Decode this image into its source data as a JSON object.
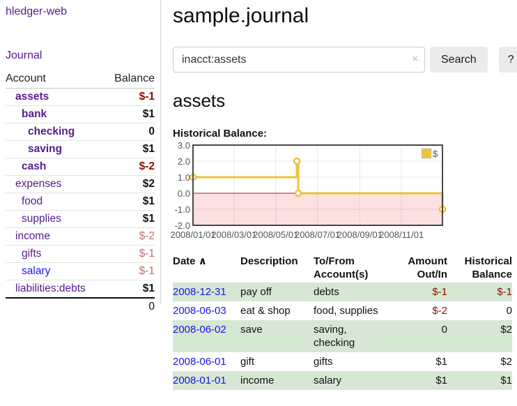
{
  "app": {
    "title": "hledger-web"
  },
  "sidebar": {
    "journal_link": "Journal",
    "accounts_header": {
      "account": "Account",
      "balance": "Balance"
    },
    "accounts": [
      {
        "name": "assets",
        "balance": "$-1"
      },
      {
        "name": "bank",
        "balance": "$1"
      },
      {
        "name": "checking",
        "balance": "0"
      },
      {
        "name": "saving",
        "balance": "$1"
      },
      {
        "name": "cash",
        "balance": "$-2"
      },
      {
        "name": "expenses",
        "balance": "$2"
      },
      {
        "name": "food",
        "balance": "$1"
      },
      {
        "name": "supplies",
        "balance": "$1"
      },
      {
        "name": "income",
        "balance": "$-2"
      },
      {
        "name": "gifts",
        "balance": "$-1"
      },
      {
        "name": "salary",
        "balance": "$-1"
      },
      {
        "name": "liabilities:debts",
        "balance": "$1"
      }
    ],
    "total": "0"
  },
  "header": {
    "title": "sample.journal"
  },
  "search": {
    "query": "inacct:assets",
    "clear_icon": "×",
    "button_label": "Search",
    "help_label": "?"
  },
  "account_page": {
    "heading": "assets",
    "chart_label": "Historical Balance:"
  },
  "chart_data": {
    "type": "line",
    "style": "steps",
    "title": "Historical Balance",
    "series": [
      {
        "name": "$",
        "color": "#edc240",
        "points": [
          [
            "2008-01-01",
            1
          ],
          [
            "2008-06-01",
            2
          ],
          [
            "2008-06-03",
            0
          ],
          [
            "2008-12-31",
            -1
          ]
        ]
      }
    ],
    "xrange": [
      "2008-01-01",
      "2008-12-31"
    ],
    "ylim": [
      -2,
      3
    ],
    "yticks": [
      3.0,
      2.0,
      1.0,
      0.0,
      -1.0,
      -2.0
    ],
    "xticks": [
      "2008/01/01",
      "2008/03/01",
      "2008/05/01",
      "2008/07/01",
      "2008/09/01",
      "2008/11/01"
    ],
    "negative_fill": "#fde1e1",
    "zero_line_color": "#a21b1b",
    "grid": true,
    "legend_position": "top-right"
  },
  "transactions": {
    "sort_icon": "∧",
    "headers": {
      "date": "Date",
      "description": "Description",
      "accounts": "To/From Account(s)",
      "amount": "Amount Out/In",
      "balance": "Historical Balance"
    },
    "rows": [
      {
        "date": "2008-12-31",
        "description": "pay off",
        "accounts": [
          "debts"
        ],
        "amount": "$-1",
        "balance": "$-1"
      },
      {
        "date": "2008-06-03",
        "description": "eat & shop",
        "accounts": [
          "food, supplies"
        ],
        "amount": "$-2",
        "balance": "0"
      },
      {
        "date": "2008-06-02",
        "description": "save",
        "accounts": [
          "saving,",
          "checking"
        ],
        "amount": "0",
        "balance": "$2"
      },
      {
        "date": "2008-06-01",
        "description": "gift",
        "accounts": [
          "gifts"
        ],
        "amount": "$1",
        "balance": "$2"
      },
      {
        "date": "2008-01-01",
        "description": "income",
        "accounts": [
          "salary"
        ],
        "amount": "$1",
        "balance": "$1"
      }
    ]
  }
}
